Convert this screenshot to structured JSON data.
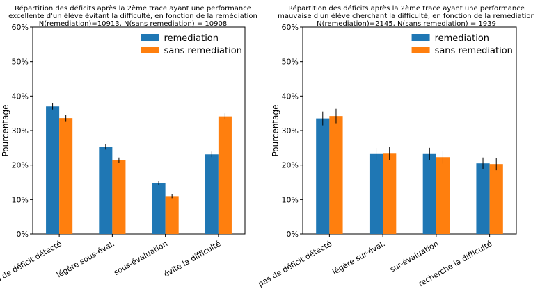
{
  "chart_data": [
    {
      "type": "bar",
      "title_lines": [
        "Répartition des déficits après la 2ème trace ayant une performance",
        "excellente d'un élève évitant la difficulté, en fonction de la remédiation",
        "N(remediation)=10913, N(sans remediation) = 10908"
      ],
      "xlabel": "",
      "ylabel": "Pourcentage",
      "ylim": [
        0,
        60
      ],
      "yticks": [
        "0%",
        "10%",
        "20%",
        "30%",
        "40%",
        "50%",
        "60%"
      ],
      "categories": [
        "pas de déficit détecté",
        "légère sous-éval.",
        "sous-évaluation",
        "évite la difficulté"
      ],
      "series": [
        {
          "name": "remediation",
          "color": "#1f77b4",
          "values": [
            37.0,
            25.3,
            14.8,
            23.1
          ],
          "errors": [
            0.9,
            0.8,
            0.7,
            0.8
          ]
        },
        {
          "name": "sans remediation",
          "color": "#ff7f0e",
          "values": [
            33.6,
            21.4,
            11.0,
            34.1
          ],
          "errors": [
            0.9,
            0.8,
            0.6,
            0.9
          ]
        }
      ],
      "legend_position": "top-right",
      "grid": false
    },
    {
      "type": "bar",
      "title_lines": [
        "Répartition des déficits après la 2ème trace ayant une performance",
        "mauvaise d'un élève cherchant la difficulté, en fonction de la remédiation",
        "N(remediation)=2145, N(sans remediation) = 1939"
      ],
      "xlabel": "",
      "ylabel": "Pourcentage",
      "ylim": [
        0,
        60
      ],
      "yticks": [
        "0%",
        "10%",
        "20%",
        "30%",
        "40%",
        "50%",
        "60%"
      ],
      "categories": [
        "pas de déficit détecté",
        "légère sur-éval.",
        "sur-évaluation",
        "recherche la difficulté"
      ],
      "series": [
        {
          "name": "remediation",
          "color": "#1f77b4",
          "values": [
            33.5,
            23.2,
            23.2,
            20.5
          ],
          "errors": [
            2.0,
            1.8,
            1.8,
            1.7
          ]
        },
        {
          "name": "sans remediation",
          "color": "#ff7f0e",
          "values": [
            34.2,
            23.3,
            22.3,
            20.3
          ],
          "errors": [
            2.1,
            1.9,
            1.9,
            1.8
          ]
        }
      ],
      "legend_position": "top-right",
      "grid": false
    }
  ]
}
